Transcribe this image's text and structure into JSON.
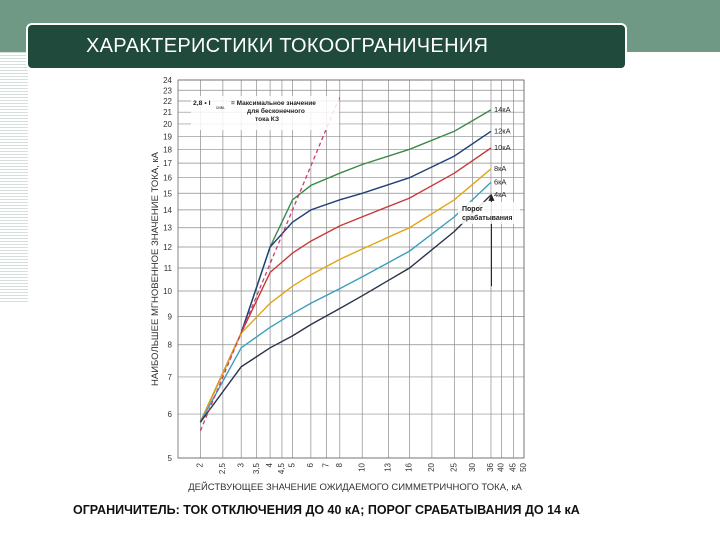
{
  "slide": {
    "title": "ХАРАКТЕРИСТИКИ ТОКООГРАНИЧЕНИЯ",
    "caption": "ОГРАНИЧИТЕЛЬ: ТОК ОТКЛЮЧЕНИЯ ДО 40 кА; ПОРОГ СРАБАТЫВАНИЯ ДО 14 кА"
  },
  "chart_data": {
    "type": "line",
    "xlabel": "ДЕЙСТВУЮЩЕЕ ЗНАЧЕНИЕ ОЖИДАЕМОГО СИММЕТРИЧНОГО ТОКА, кА",
    "ylabel": "НАИБОЛЬШЕЕ МГНОВЕННОЕ ЗНАЧЕНИЕ ТОКА, кА",
    "x_scale": "log",
    "y_scale": "log",
    "xlim": [
      1.6,
      50
    ],
    "ylim": [
      5,
      24
    ],
    "x_ticks": [
      2,
      2.5,
      3,
      3.5,
      4,
      4.5,
      5,
      6,
      7,
      8,
      10,
      13,
      16,
      20,
      25,
      30,
      36,
      40,
      45,
      50
    ],
    "y_ticks": [
      5,
      6,
      7,
      8,
      9,
      10,
      11,
      12,
      13,
      14,
      15,
      16,
      17,
      18,
      19,
      20,
      21,
      22,
      23,
      24
    ],
    "grid": true,
    "annotations": {
      "formula": "2,8 • I",
      "formula_sub": "сим.",
      "formula_text": "= Максимальное значение для бесконечного тока КЗ",
      "threshold": "Порог срабатывания"
    },
    "series": [
      {
        "name": "14кА",
        "color": "#3a8a4a",
        "x": [
          2,
          3,
          4,
          5,
          6,
          8,
          10,
          16,
          25,
          36
        ],
        "y": [
          5.8,
          8.4,
          12.0,
          14.6,
          15.5,
          16.3,
          16.9,
          18.0,
          19.4,
          21.2
        ]
      },
      {
        "name": "12кА",
        "color": "#1f3f7a",
        "x": [
          2,
          3,
          4,
          5,
          6,
          8,
          10,
          16,
          25,
          36
        ],
        "y": [
          5.8,
          8.4,
          12.0,
          13.3,
          14.0,
          14.6,
          15.0,
          16.0,
          17.5,
          19.4
        ]
      },
      {
        "name": "10кА",
        "color": "#c83a38",
        "x": [
          2,
          3,
          4,
          5,
          6,
          8,
          10,
          16,
          25,
          36
        ],
        "y": [
          5.8,
          8.4,
          10.8,
          11.7,
          12.3,
          13.1,
          13.6,
          14.7,
          16.3,
          18.1
        ]
      },
      {
        "name": "8кА",
        "color": "#e0a615",
        "x": [
          2,
          3,
          4,
          5,
          6,
          8,
          10,
          16,
          25,
          36
        ],
        "y": [
          5.8,
          8.4,
          9.5,
          10.2,
          10.7,
          11.4,
          11.9,
          13.0,
          14.6,
          16.6
        ]
      },
      {
        "name": "6кА",
        "color": "#3a9fbf",
        "x": [
          2,
          3,
          4,
          5,
          6,
          8,
          10,
          16,
          25,
          36
        ],
        "y": [
          5.8,
          7.9,
          8.6,
          9.1,
          9.5,
          10.1,
          10.6,
          11.8,
          13.6,
          15.7
        ]
      },
      {
        "name": "4кА",
        "color": "#2b3348",
        "x": [
          2,
          3,
          4,
          5,
          6,
          8,
          10,
          16,
          25,
          36
        ],
        "y": [
          5.8,
          7.3,
          7.9,
          8.3,
          8.7,
          9.3,
          9.8,
          11.0,
          12.8,
          14.9
        ]
      }
    ],
    "asymptote": {
      "color": "#d23a6a",
      "x": [
        2,
        8
      ],
      "y": [
        5.6,
        22.4
      ]
    }
  }
}
